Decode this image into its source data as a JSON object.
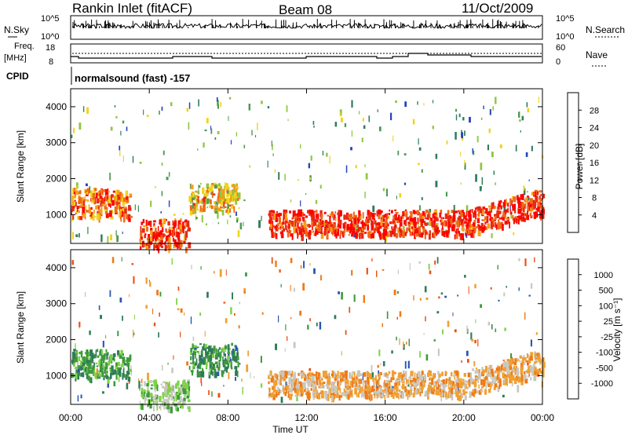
{
  "header": {
    "station": "Rankin Inlet (fitACF)",
    "beam": "Beam 08",
    "date": "11/Oct/2009"
  },
  "top_panels": {
    "nsky_label": "N.Sky",
    "nsky_ticks": [
      "10^5",
      "10^0"
    ],
    "nsky_right_ticks": [
      "10^5",
      "10^0"
    ],
    "nsearch_label": "N.Search",
    "freq_label": "Freq.",
    "freq_unit": "[MHz]",
    "freq_ticks": [
      "18",
      "8"
    ],
    "nave_ticks": [
      "60",
      "0"
    ],
    "nave_label": "Nave",
    "cpid_label": "CPID",
    "cpid_value": "normalsound (fast) -157"
  },
  "colors": {
    "power": [
      "#0022ee",
      "#2244bb",
      "#2e7d5b",
      "#4c9a52",
      "#8fc640",
      "#f1d21c",
      "#f4a018",
      "#ef6a18",
      "#e52b15",
      "#ff0000"
    ],
    "velocity": [
      "#1a2fbf",
      "#2a56b0",
      "#2f7b58",
      "#3e9a3a",
      "#7ed347",
      "#c8c8c0",
      "#f0a030",
      "#ef7a18",
      "#ec4f14",
      "#e81a10"
    ]
  },
  "chart_data": [
    {
      "type": "heatmap",
      "title": "Power",
      "xlabel": "Time UT",
      "ylabel": "Slant Range [km]",
      "x_ticks": [
        "00:00",
        "04:00",
        "08:00",
        "12:00",
        "16:00",
        "20:00",
        "00:00"
      ],
      "y_ticks": [
        1000,
        2000,
        3000,
        4000
      ],
      "ylim": [
        200,
        4500
      ],
      "colorbar": {
        "label": "Power [dB]",
        "ticks": [
          "28",
          "24",
          "20",
          "16",
          "12",
          "8",
          "4"
        ],
        "range": [
          0,
          30
        ]
      },
      "features": [
        {
          "t_start": 0.0,
          "t_end": 3.0,
          "range_center": 1350,
          "value": 22
        },
        {
          "t_start": 3.5,
          "t_end": 6.0,
          "range_center": 500,
          "value": 26
        },
        {
          "t_start": 6.0,
          "t_end": 8.5,
          "range_center": 1500,
          "value": 18
        },
        {
          "t_start": 10.0,
          "t_end": 24.0,
          "range_center": 800,
          "value": 27
        }
      ]
    },
    {
      "type": "heatmap",
      "title": "Velocity",
      "xlabel": "Time UT",
      "ylabel": "Slant Range [km]",
      "x_ticks": [
        "00:00",
        "04:00",
        "08:00",
        "12:00",
        "16:00",
        "20:00",
        "00:00"
      ],
      "y_ticks": [
        1000,
        2000,
        3000,
        4000
      ],
      "ylim": [
        200,
        4500
      ],
      "colorbar": {
        "label": "Velocity [m s⁻¹]",
        "ticks": [
          "1000",
          "500",
          "100",
          "25",
          "-25",
          "-100",
          "-500",
          "-1000"
        ],
        "range": [
          -1000,
          1000
        ]
      },
      "features": [
        {
          "t_start": 0.0,
          "t_end": 3.0,
          "range_center": 1350,
          "value": 300
        },
        {
          "t_start": 3.5,
          "t_end": 6.0,
          "range_center": 500,
          "value": 50
        },
        {
          "t_start": 6.0,
          "t_end": 8.5,
          "range_center": 1500,
          "value": 400
        },
        {
          "t_start": 10.0,
          "t_end": 24.0,
          "range_center": 800,
          "value": -300
        }
      ]
    }
  ]
}
